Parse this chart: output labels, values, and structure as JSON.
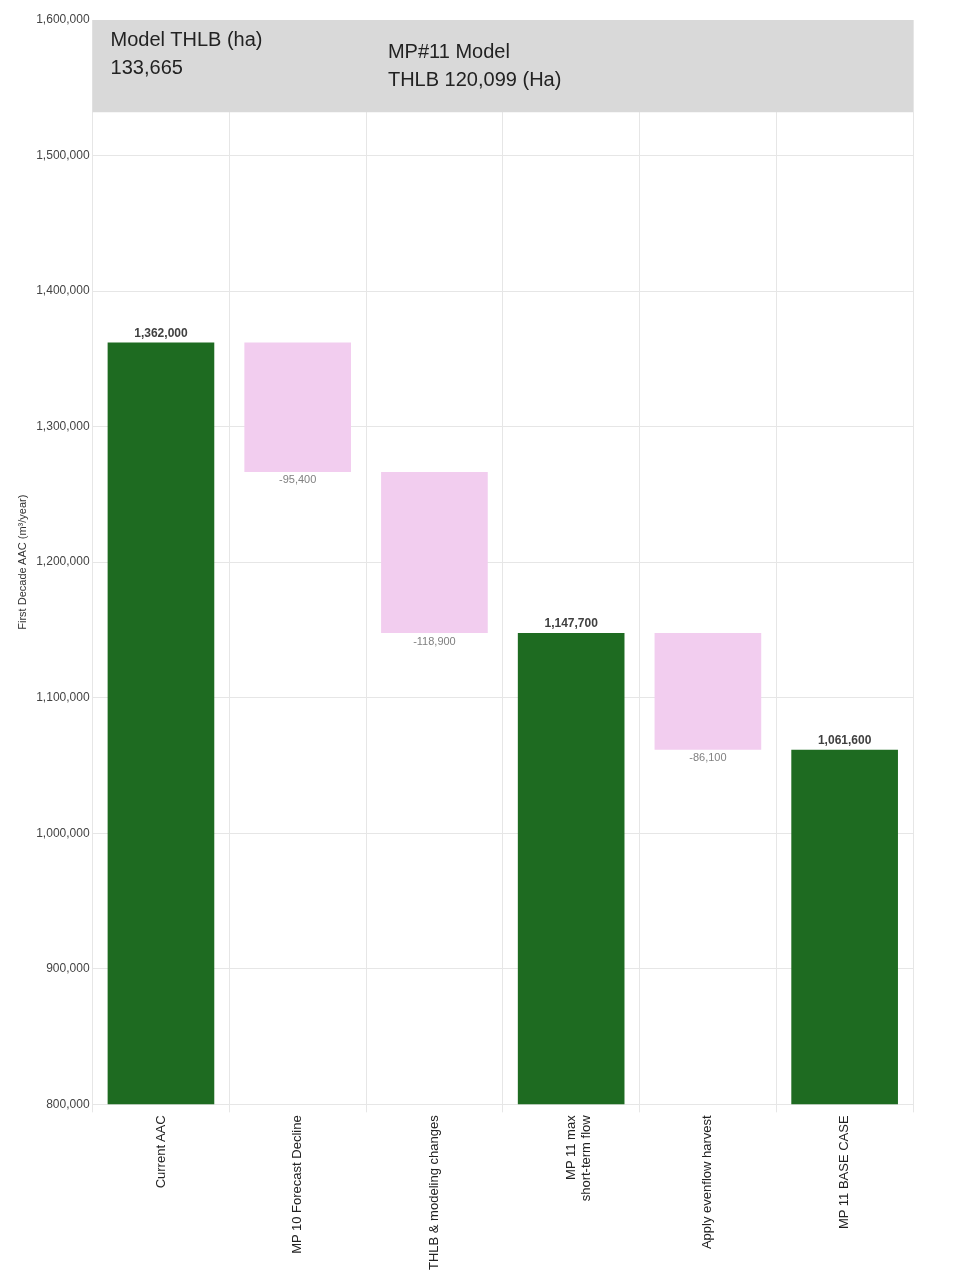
{
  "chart_data": {
    "type": "bar",
    "ylabel": "First Decade AAC (m³/year)",
    "categories": [
      "Current AAC",
      "MP 10 Forecast Decline",
      "THLB & modeling changes",
      "MP 11 max\nshort-term flow",
      "Apply evenflow harvest",
      "MP 11 BASE CASE"
    ],
    "values": [
      1362000,
      -95400,
      -118900,
      1147700,
      -86100,
      1061600
    ],
    "base": [
      null,
      1362000,
      1266600,
      null,
      1147700,
      null
    ],
    "colors": [
      "#1e6b21",
      "#f2cdef",
      "#f2cdef",
      "#1e6b21",
      "#f2cdef",
      "#1e6b21"
    ],
    "value_labels": [
      "1,362,000",
      "-95,400",
      "-118,900",
      "1,147,700",
      "-86,100",
      "1,061,600"
    ],
    "ylim": [
      800000,
      1600000
    ],
    "yticks": [
      {
        "value": 800000,
        "label": "800,000"
      },
      {
        "value": 900000,
        "label": "900,000"
      },
      {
        "value": 1000000,
        "label": "1,000,000"
      },
      {
        "value": 1100000,
        "label": "1,100,000"
      },
      {
        "value": 1200000,
        "label": "1,200,000"
      },
      {
        "value": 1300000,
        "label": "1,300,000"
      },
      {
        "value": 1400000,
        "label": "1,400,000"
      },
      {
        "value": 1500000,
        "label": "1,500,000"
      },
      {
        "value": 1600000,
        "label": "1,600,000"
      }
    ],
    "bands": [
      {
        "axis": "y",
        "from": 1532000,
        "to": 1600000,
        "color": "#d9d9d9"
      }
    ],
    "annotations": [
      "Model THLB (ha)\n133,665",
      "MP#11 Model\nTHLB 120,099 (Ha)"
    ],
    "grid": true,
    "legend": false
  }
}
